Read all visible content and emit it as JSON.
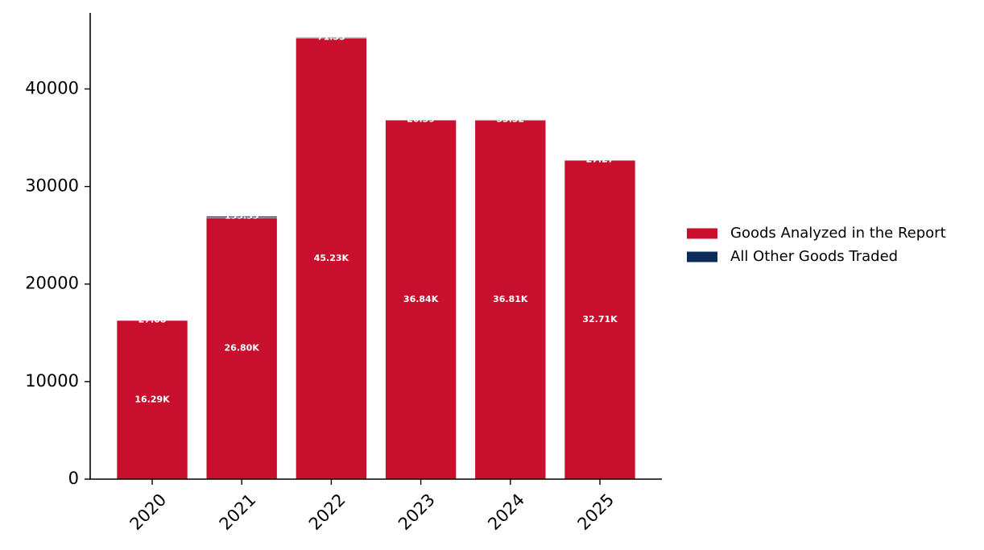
{
  "chart_data": {
    "type": "bar",
    "stacked": true,
    "categories": [
      "2020",
      "2021",
      "2022",
      "2023",
      "2024",
      "2025"
    ],
    "series": [
      {
        "name": "Goods Analyzed in the Report",
        "color": "#C8102E",
        "values": [
          16290,
          26800,
          45230,
          36840,
          36810,
          32710
        ],
        "labels": [
          "16.29K",
          "26.80K",
          "45.23K",
          "36.84K",
          "36.81K",
          "32.71K"
        ]
      },
      {
        "name": "All Other Goods Traded",
        "color": "#0C2C5C",
        "values": [
          27.08,
          155.35,
          71.33,
          20.39,
          53.32,
          27.27
        ],
        "labels": [
          "27.08",
          "155.35",
          "71.33",
          "20.39",
          "53.32",
          "27.27"
        ]
      }
    ],
    "ylim": [
      0,
      47800
    ],
    "yticks": [
      "0",
      "10000",
      "20000",
      "30000",
      "40000"
    ],
    "xtick_rotation": 45,
    "grid": false,
    "legend": "right",
    "title": "",
    "xlabel": "",
    "ylabel": ""
  }
}
